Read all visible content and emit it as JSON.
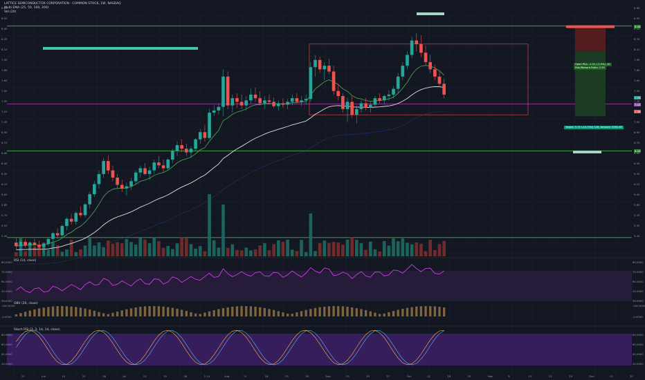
{
  "header": {
    "symbol_line": "LATTICE SEMICONDUCTOR CORPORATION - COMMON STOCK, 1W, NASDAQ",
    "ma_line": "Multi EMA (25, 50, 100, 200)",
    "vol_line": "Vol (20)"
  },
  "panes": {
    "rsi_label": "RSI (14, close)",
    "vol_label": "OBV (20, close)",
    "stoch_label": "Stoch RSI (3, 3, 14, 14, close)"
  },
  "position": {
    "open_label": "Open P&L: -1.51 (-2.0%), 10",
    "rr_label": "Risk/Reward Ratio: 2.55",
    "target_label": "Target: 5.73 (-14.75%) 128, Amount: 3392.65"
  },
  "price_axis": {
    "labels": [
      "8.60",
      "8.55",
      "8.40",
      "8.25",
      "8.10",
      "7.95",
      "7.80",
      "7.65",
      "7.50",
      "7.35",
      "7.20",
      "7.05",
      "6.90",
      "6.75",
      "6.60",
      "6.45",
      "6.30",
      "6.15",
      "6.00",
      "5.85",
      "5.70",
      "5.55",
      "5.40"
    ],
    "tags": [
      "8.45",
      "7.47",
      "7.59",
      "7.39",
      "6.45"
    ]
  },
  "rsi_axis": {
    "labels": [
      "80.0000",
      "75.0000",
      "60.0000",
      "45.0000",
      "30.0000"
    ]
  },
  "obv_axis": {
    "labels": [
      "-500.0000",
      "-0.0000"
    ]
  },
  "stoch_axis": {
    "labels": [
      "80.0000",
      "60.0000",
      "40.0000",
      "20.0000"
    ]
  },
  "time_axis": {
    "labels": [
      "21",
      "Jun",
      "14",
      "21",
      "28",
      "Jul",
      "12",
      "19",
      "26",
      "2 14",
      "Aug",
      "9",
      "16",
      "23",
      "30",
      "Sep",
      "13",
      "20",
      "27",
      "Oct",
      "11",
      "18",
      "25",
      "Nov",
      "8",
      "15",
      "22",
      "29",
      "Dec",
      "13",
      "20"
    ]
  },
  "colors": {
    "background": "#131722",
    "up": "#26a69a",
    "down": "#ef5350",
    "rsi": "#e040fb",
    "ema25": "#4caf50",
    "ema200": "#e0e0e0",
    "horizontal": "#2e7d32",
    "rect": "#ef5350"
  },
  "chart_data": {
    "type": "candlestick",
    "title": "LATTICE SEMICONDUCTOR CORPORATION - COMMON STOCK, 1W, NASDAQ",
    "ylim": [
      5.35,
      8.7
    ],
    "horizontal_levels": [
      8.55,
      6.82,
      5.62
    ],
    "candles": [
      [
        5.55,
        5.62,
        5.45,
        5.5
      ],
      [
        5.5,
        5.58,
        5.44,
        5.56
      ],
      [
        5.56,
        5.6,
        5.48,
        5.51
      ],
      [
        5.51,
        5.57,
        5.46,
        5.55
      ],
      [
        5.55,
        5.6,
        5.5,
        5.52
      ],
      [
        5.52,
        5.58,
        5.45,
        5.49
      ],
      [
        5.49,
        5.55,
        5.4,
        5.53
      ],
      [
        5.53,
        5.62,
        5.5,
        5.6
      ],
      [
        5.6,
        5.7,
        5.56,
        5.68
      ],
      [
        5.68,
        5.75,
        5.6,
        5.65
      ],
      [
        5.65,
        5.8,
        5.62,
        5.78
      ],
      [
        5.78,
        5.9,
        5.72,
        5.88
      ],
      [
        5.88,
        5.95,
        5.8,
        5.84
      ],
      [
        5.84,
        5.98,
        5.8,
        5.96
      ],
      [
        5.96,
        6.05,
        5.9,
        5.93
      ],
      [
        5.93,
        6.1,
        5.9,
        6.08
      ],
      [
        6.08,
        6.25,
        6.02,
        6.22
      ],
      [
        6.22,
        6.4,
        6.18,
        6.36
      ],
      [
        6.36,
        6.55,
        6.3,
        6.5
      ],
      [
        6.5,
        6.72,
        6.45,
        6.68
      ],
      [
        6.68,
        6.76,
        6.5,
        6.55
      ],
      [
        6.55,
        6.62,
        6.4,
        6.45
      ],
      [
        6.45,
        6.5,
        6.3,
        6.35
      ],
      [
        6.35,
        6.42,
        6.25,
        6.3
      ],
      [
        6.3,
        6.38,
        6.2,
        6.33
      ],
      [
        6.33,
        6.45,
        6.28,
        6.4
      ],
      [
        6.4,
        6.55,
        6.35,
        6.52
      ],
      [
        6.52,
        6.62,
        6.45,
        6.58
      ],
      [
        6.58,
        6.65,
        6.48,
        6.5
      ],
      [
        6.5,
        6.6,
        6.42,
        6.55
      ],
      [
        6.55,
        6.7,
        6.5,
        6.66
      ],
      [
        6.66,
        6.75,
        6.58,
        6.62
      ],
      [
        6.62,
        6.7,
        6.52,
        6.58
      ],
      [
        6.58,
        6.72,
        6.55,
        6.7
      ],
      [
        6.7,
        6.85,
        6.65,
        6.82
      ],
      [
        6.82,
        6.95,
        6.75,
        6.9
      ],
      [
        6.9,
        6.98,
        6.8,
        6.85
      ],
      [
        6.85,
        6.92,
        6.75,
        6.8
      ],
      [
        6.8,
        6.88,
        6.72,
        6.85
      ],
      [
        6.85,
        7.0,
        6.82,
        6.98
      ],
      [
        6.98,
        7.12,
        6.92,
        7.08
      ],
      [
        7.08,
        7.18,
        6.95,
        7.0
      ],
      [
        7.0,
        7.4,
        6.98,
        7.35
      ],
      [
        7.35,
        7.45,
        7.3,
        7.38
      ],
      [
        7.38,
        7.48,
        7.32,
        7.43
      ],
      [
        7.43,
        7.95,
        7.3,
        7.85
      ],
      [
        7.85,
        7.92,
        7.4,
        7.45
      ],
      [
        7.45,
        7.6,
        7.35,
        7.55
      ],
      [
        7.55,
        7.62,
        7.42,
        7.5
      ],
      [
        7.5,
        7.6,
        7.4,
        7.45
      ],
      [
        7.45,
        7.58,
        7.38,
        7.52
      ],
      [
        7.52,
        7.68,
        7.48,
        7.6
      ],
      [
        7.6,
        7.7,
        7.5,
        7.55
      ],
      [
        7.55,
        7.65,
        7.45,
        7.48
      ],
      [
        7.48,
        7.58,
        7.4,
        7.52
      ],
      [
        7.52,
        7.6,
        7.46,
        7.5
      ],
      [
        7.5,
        7.56,
        7.42,
        7.44
      ],
      [
        7.44,
        7.52,
        7.38,
        7.48
      ],
      [
        7.48,
        7.55,
        7.42,
        7.46
      ],
      [
        7.46,
        7.54,
        7.4,
        7.5
      ],
      [
        7.5,
        7.6,
        7.45,
        7.55
      ],
      [
        7.55,
        7.62,
        7.48,
        7.5
      ],
      [
        7.5,
        7.58,
        7.44,
        7.52
      ],
      [
        7.52,
        7.6,
        7.46,
        7.54
      ],
      [
        7.54,
        8.05,
        7.5,
        7.98
      ],
      [
        7.98,
        8.15,
        7.85,
        8.08
      ],
      [
        8.08,
        8.12,
        7.9,
        7.95
      ],
      [
        7.95,
        8.05,
        7.8,
        8.0
      ],
      [
        8.0,
        8.1,
        7.88,
        7.92
      ],
      [
        7.92,
        8.0,
        7.6,
        7.65
      ],
      [
        7.65,
        7.75,
        7.52,
        7.58
      ],
      [
        7.58,
        7.62,
        7.35,
        7.4
      ],
      [
        7.4,
        7.55,
        7.22,
        7.5
      ],
      [
        7.5,
        7.58,
        7.28,
        7.32
      ],
      [
        7.32,
        7.45,
        7.2,
        7.4
      ],
      [
        7.4,
        7.52,
        7.35,
        7.48
      ],
      [
        7.48,
        7.55,
        7.38,
        7.42
      ],
      [
        7.42,
        7.5,
        7.35,
        7.46
      ],
      [
        7.46,
        7.58,
        7.42,
        7.55
      ],
      [
        7.55,
        7.62,
        7.48,
        7.52
      ],
      [
        7.52,
        7.6,
        7.46,
        7.58
      ],
      [
        7.58,
        7.66,
        7.52,
        7.6
      ],
      [
        7.6,
        7.72,
        7.55,
        7.68
      ],
      [
        7.68,
        7.9,
        7.62,
        7.85
      ],
      [
        7.85,
        8.05,
        7.8,
        8.0
      ],
      [
        8.0,
        8.2,
        7.95,
        8.15
      ],
      [
        8.15,
        8.4,
        8.1,
        8.35
      ],
      [
        8.35,
        8.45,
        8.2,
        8.3
      ],
      [
        8.3,
        8.42,
        8.12,
        8.18
      ],
      [
        8.18,
        8.28,
        8.0,
        8.05
      ],
      [
        8.05,
        8.15,
        7.9,
        7.95
      ],
      [
        7.95,
        8.02,
        7.8,
        7.85
      ],
      [
        7.85,
        7.92,
        7.7,
        7.75
      ],
      [
        7.75,
        7.82,
        7.55,
        7.6
      ]
    ]
  }
}
